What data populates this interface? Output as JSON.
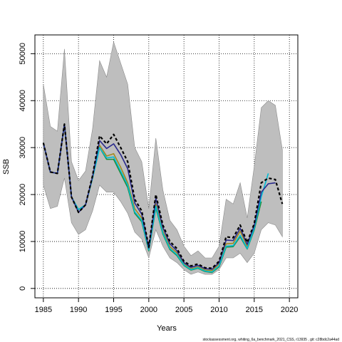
{
  "chart_data": {
    "type": "line",
    "title": "",
    "xlabel": "Years",
    "ylabel": "SSB",
    "caption": "stockassessment.org, whiting_6a_benchmark_2021_CSS, r13935 , git: c28bdc2a44ad",
    "xlim": [
      1983.8,
      2021.2
    ],
    "ylim": [
      -2000,
      54000
    ],
    "xticks": [
      1985,
      1990,
      1995,
      2000,
      2005,
      2010,
      2015,
      2020
    ],
    "yticks": [
      0,
      10000,
      20000,
      30000,
      40000,
      50000
    ],
    "grid": true,
    "grid_style": "dotted",
    "ci_band": {
      "color": "#bebebe",
      "x": [
        1985,
        1986,
        1987,
        1988,
        1989,
        1990,
        1991,
        1992,
        1993,
        1994,
        1995,
        1996,
        1997,
        1998,
        1999,
        2000,
        2001,
        2002,
        2003,
        2004,
        2005,
        2006,
        2007,
        2008,
        2009,
        2010,
        2011,
        2012,
        2013,
        2014,
        2015,
        2016,
        2017,
        2018,
        2019
      ],
      "upper": [
        43500,
        34500,
        33500,
        51000,
        27000,
        23000,
        25000,
        34000,
        48500,
        45000,
        52500,
        48000,
        43500,
        30000,
        27000,
        17000,
        32000,
        21000,
        14500,
        12500,
        9000,
        7000,
        8000,
        6500,
        6500,
        9000,
        19000,
        18000,
        22500,
        15000,
        26000,
        38500,
        40000,
        39000,
        29500
      ],
      "lower": [
        22000,
        17000,
        17500,
        23500,
        14000,
        11500,
        12500,
        16500,
        22000,
        20500,
        20500,
        18500,
        16000,
        12000,
        10500,
        6500,
        12500,
        9000,
        6500,
        5500,
        4000,
        3000,
        3500,
        3000,
        3000,
        4000,
        6500,
        6500,
        7500,
        5500,
        7500,
        12500,
        14000,
        13500,
        11000
      ]
    },
    "series": [
      {
        "color": "#000000",
        "style": "dashed",
        "width": 2.2,
        "x": [
          1985,
          1986,
          1987,
          1988,
          1989,
          1990,
          1991,
          1992,
          1993,
          1994,
          1995,
          1996,
          1997,
          1998,
          1999,
          2000,
          2001,
          2002,
          2003,
          2004,
          2005,
          2006,
          2007,
          2008,
          2009,
          2010,
          2011,
          2012,
          2013,
          2014,
          2015,
          2016,
          2017,
          2018,
          2019
        ],
        "values": [
          31000,
          24800,
          24500,
          35000,
          19500,
          16200,
          17800,
          24000,
          32500,
          30800,
          32800,
          30000,
          27000,
          19000,
          16500,
          8800,
          20000,
          13500,
          10000,
          8500,
          5800,
          4800,
          5200,
          4400,
          4300,
          5800,
          11000,
          10800,
          13500,
          9800,
          13800,
          22500,
          23500,
          23200,
          18000
        ]
      },
      {
        "color": "#2a2a8c",
        "style": "solid",
        "width": 1.6,
        "x": [
          1985,
          1986,
          1987,
          1988,
          1989,
          1990,
          1991,
          1992,
          1993,
          1994,
          1995,
          1996,
          1997,
          1998,
          1999,
          2000,
          2001,
          2002,
          2003,
          2004,
          2005,
          2006,
          2007,
          2008,
          2009,
          2010,
          2011,
          2012,
          2013,
          2014,
          2015,
          2016,
          2017,
          2018
        ],
        "values": [
          31000,
          24800,
          24500,
          35000,
          19500,
          16200,
          17800,
          23800,
          31500,
          29800,
          30800,
          28500,
          25500,
          18200,
          15800,
          8600,
          19200,
          13000,
          9500,
          8000,
          5500,
          4500,
          4900,
          4200,
          4100,
          5500,
          10300,
          10200,
          12800,
          9400,
          13400,
          20500,
          22300,
          22500
        ]
      },
      {
        "color": "#00bcd4",
        "style": "solid",
        "width": 1.6,
        "x": [
          1985,
          1986,
          1987,
          1988,
          1989,
          1990,
          1991,
          1992,
          1993,
          1994,
          1995,
          1996,
          1997,
          1998,
          1999,
          2000,
          2001,
          2002,
          2003,
          2004,
          2005,
          2006,
          2007,
          2008,
          2009,
          2010,
          2011,
          2012,
          2013,
          2014,
          2015,
          2016,
          2017
        ],
        "values": [
          31000,
          24800,
          24500,
          35000,
          19500,
          16800,
          17800,
          23500,
          30000,
          27800,
          28000,
          25000,
          22000,
          16300,
          14500,
          8200,
          17500,
          11800,
          8500,
          7200,
          5000,
          4000,
          4400,
          3700,
          3500,
          4800,
          9000,
          9100,
          11300,
          8500,
          12800,
          19500,
          24500
        ]
      },
      {
        "color": "#1e8c3a",
        "style": "solid",
        "width": 1.6,
        "x": [
          1985,
          1986,
          1987,
          1988,
          1989,
          1990,
          1991,
          1992,
          1993,
          1994,
          1995,
          1996,
          1997,
          1998,
          1999,
          2000,
          2001,
          2002,
          2003,
          2004,
          2005,
          2006,
          2007,
          2008,
          2009,
          2010,
          2011,
          2012,
          2013,
          2014,
          2015,
          2016
        ],
        "values": [
          31000,
          24800,
          24500,
          35000,
          19500,
          16800,
          17800,
          23500,
          30000,
          27500,
          27500,
          24500,
          21500,
          16000,
          14200,
          8000,
          17200,
          11600,
          8300,
          7000,
          4900,
          3900,
          4300,
          3600,
          3400,
          4600,
          8800,
          8900,
          11000,
          8400,
          12500,
          18500
        ]
      },
      {
        "color": "#a08a20",
        "style": "solid",
        "width": 1.6,
        "x": [
          1985,
          1986,
          1987,
          1988,
          1989,
          1990,
          1991,
          1992,
          1993,
          1994,
          1995,
          1996,
          1997,
          1998,
          1999,
          2000,
          2001,
          2002,
          2003,
          2004,
          2005,
          2006,
          2007,
          2008,
          2009,
          2010,
          2011,
          2012,
          2013,
          2014,
          2015
        ],
        "values": [
          31000,
          24800,
          24500,
          35000,
          19500,
          16800,
          17800,
          23500,
          30500,
          28200,
          28700,
          25800,
          22500,
          17000,
          15000,
          8400,
          18000,
          12200,
          8900,
          7600,
          5300,
          4200,
          4600,
          3900,
          3800,
          5200,
          9500,
          9600,
          12200,
          9000,
          13200
        ]
      }
    ]
  }
}
